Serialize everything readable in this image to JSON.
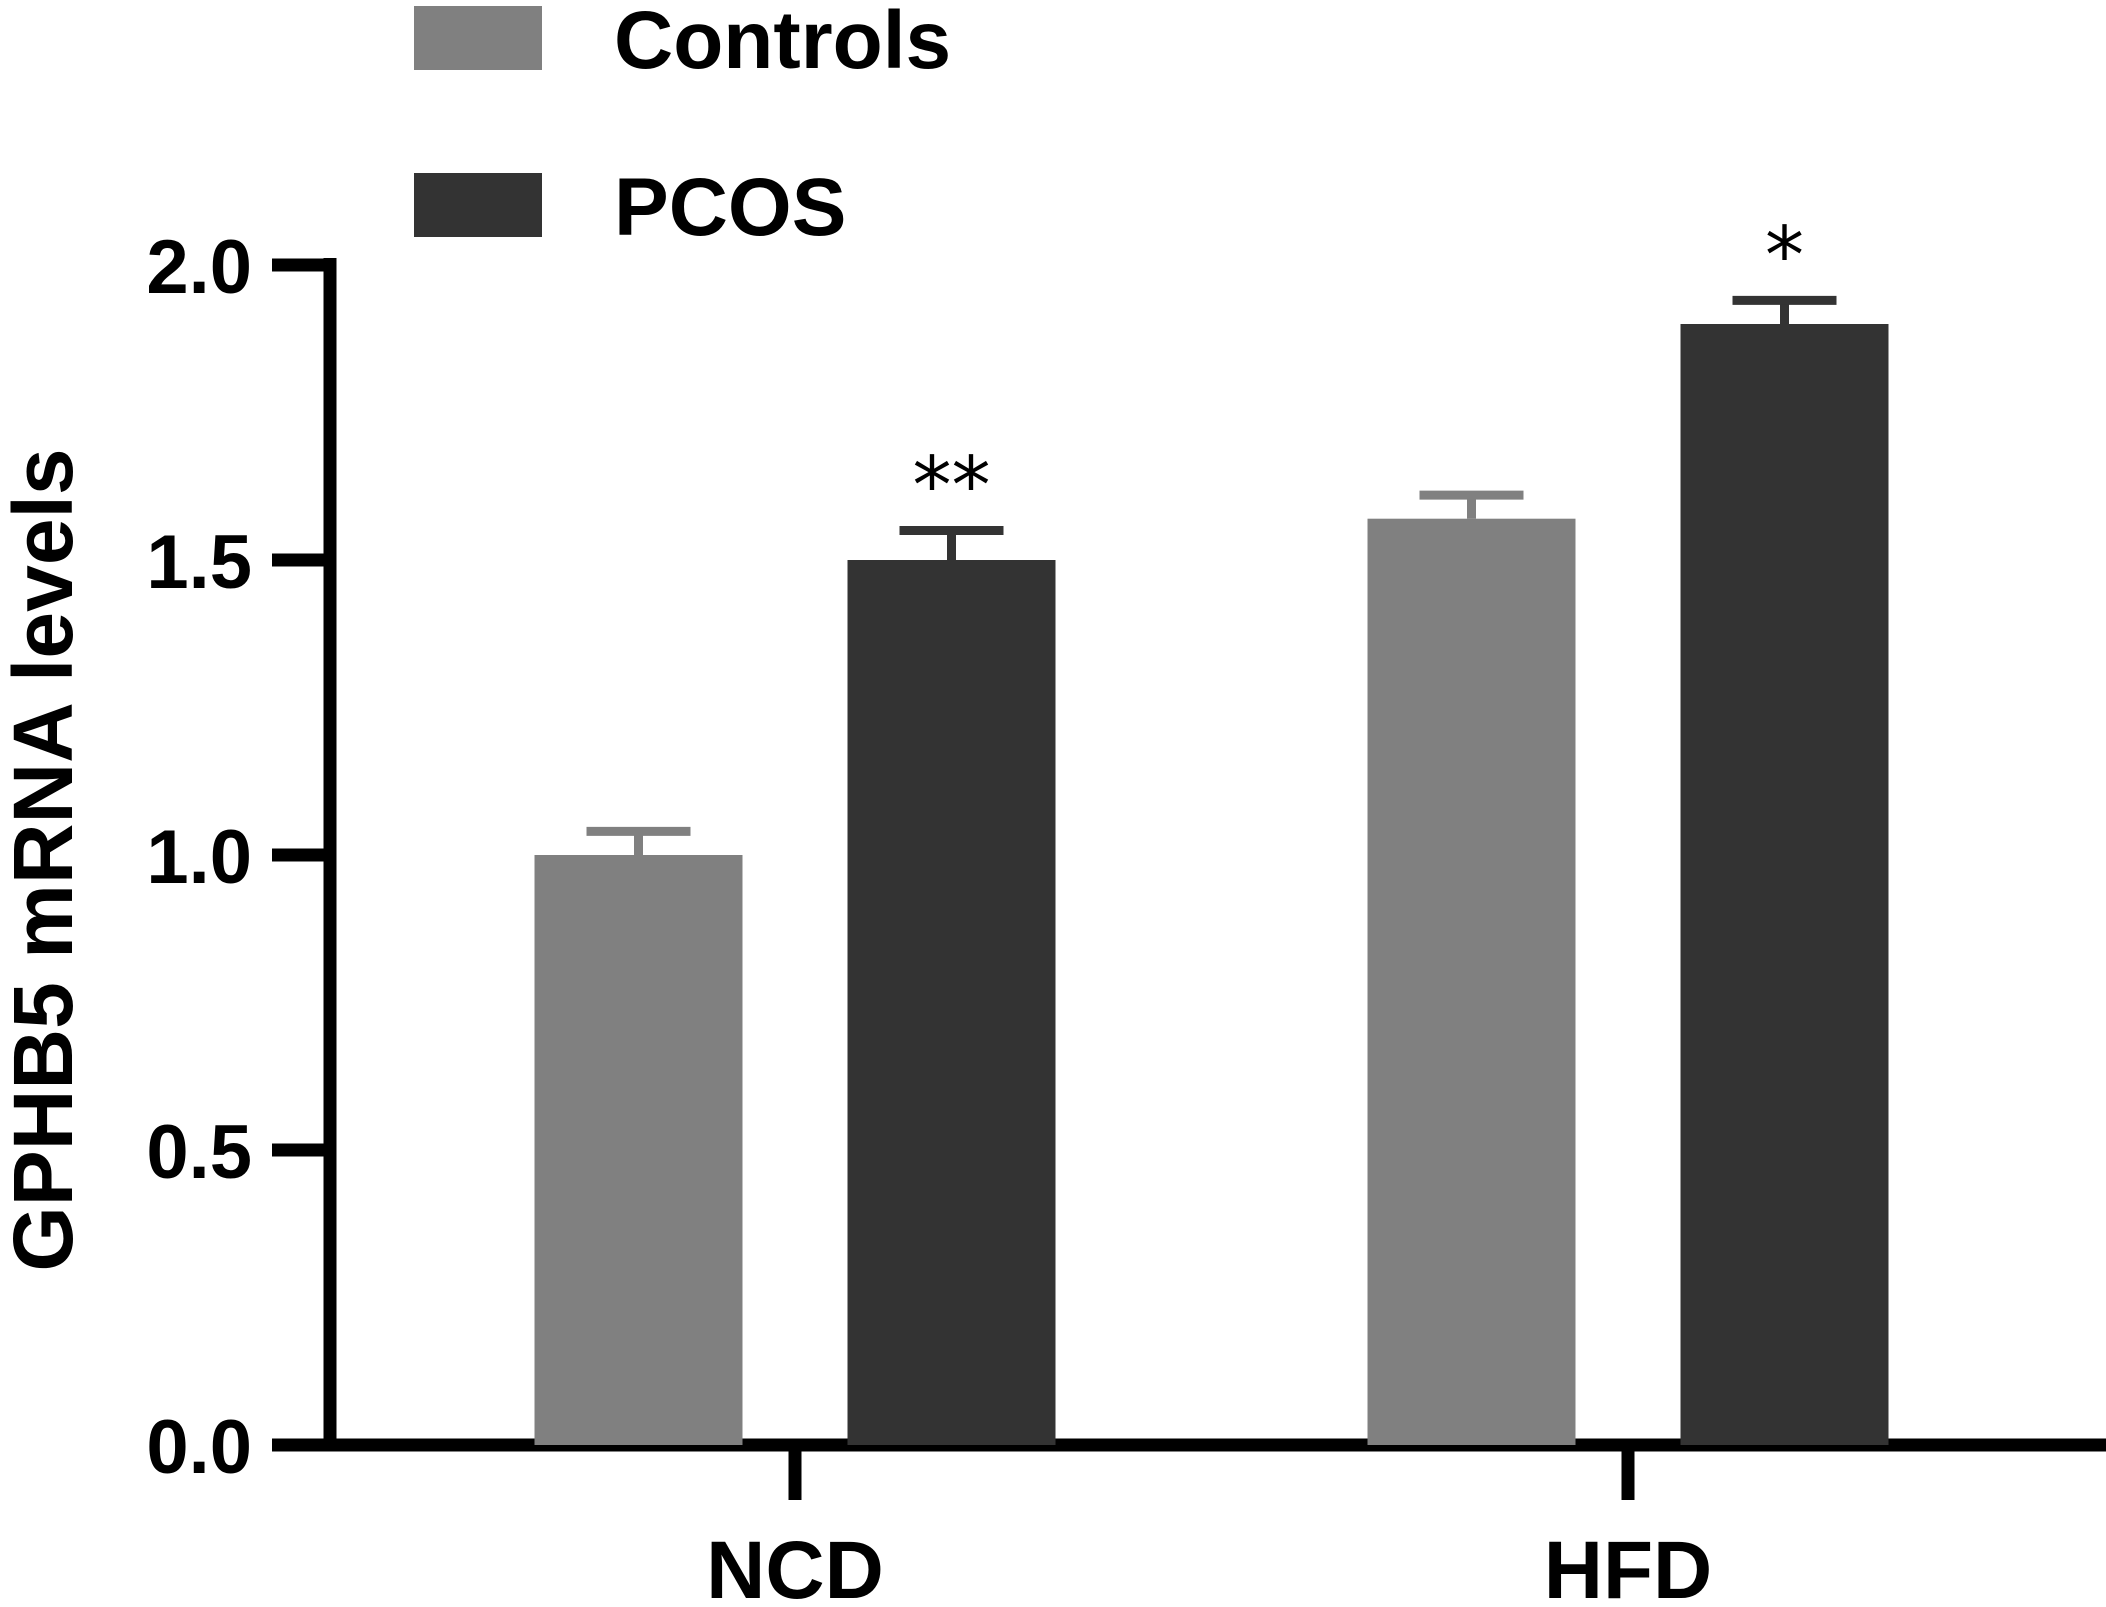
{
  "chart_data": {
    "type": "bar",
    "categories": [
      "NCD",
      "HFD"
    ],
    "series": [
      {
        "name": "Controls",
        "color": "#808080",
        "values": [
          1.0,
          1.57
        ],
        "errors": [
          0.04,
          0.04
        ],
        "significance": [
          "",
          ""
        ]
      },
      {
        "name": "PCOS",
        "color": "#333333",
        "values": [
          1.5,
          1.9
        ],
        "errors": [
          0.05,
          0.04
        ],
        "significance": [
          "**",
          "*"
        ]
      }
    ],
    "title": "",
    "xlabel": "",
    "ylabel": "GPHB5 mRNA levels",
    "ylim": [
      0,
      2.0
    ],
    "yticks": [
      0.0,
      0.5,
      1.0,
      1.5,
      2.0
    ],
    "ytick_labels": [
      "0.0",
      "0.5",
      "1.0",
      "1.5",
      "2.0"
    ],
    "grid": false,
    "legend_position": "top-left"
  }
}
